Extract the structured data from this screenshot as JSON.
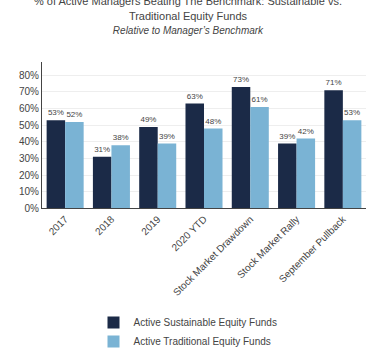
{
  "chart_data": {
    "type": "bar",
    "title": "% of Active Managers Beating The Benchmark: Sustainable vs. Traditional Equity Funds",
    "subtitle": "Relative to Manager’s Benchmark",
    "categories": [
      "2017",
      "2018",
      "2019",
      "2020 YTD",
      "Stock Market Drawdown",
      "Stock Market Rally",
      "September Pullback"
    ],
    "series": [
      {
        "name": "Active Sustainable Equity Funds",
        "color": "#1b2a47",
        "values": [
          53,
          31,
          49,
          63,
          73,
          39,
          71
        ],
        "value_labels": [
          "53%",
          "31%",
          "49%",
          "63%",
          "73%",
          "39%",
          "71%"
        ]
      },
      {
        "name": "Active Traditional Equity Funds",
        "color": "#7ab3d4",
        "values": [
          52,
          38,
          39,
          48,
          61,
          42,
          53
        ],
        "value_labels": [
          "52%",
          "38%",
          "39%",
          "48%",
          "61%",
          "42%",
          "53%"
        ]
      }
    ],
    "ylim": [
      0,
      88
    ],
    "yticks": [
      {
        "value": 0,
        "label": "0%"
      },
      {
        "value": 10,
        "label": "10%"
      },
      {
        "value": 20,
        "label": "20%"
      },
      {
        "value": 30,
        "label": "30%"
      },
      {
        "value": 40,
        "label": "40%"
      },
      {
        "value": 50,
        "label": "50%"
      },
      {
        "value": 60,
        "label": "60%"
      },
      {
        "value": 70,
        "label": "70%"
      },
      {
        "value": 80,
        "label": "80%"
      }
    ],
    "grid": true,
    "legend": "bottom",
    "data_labels": true
  }
}
